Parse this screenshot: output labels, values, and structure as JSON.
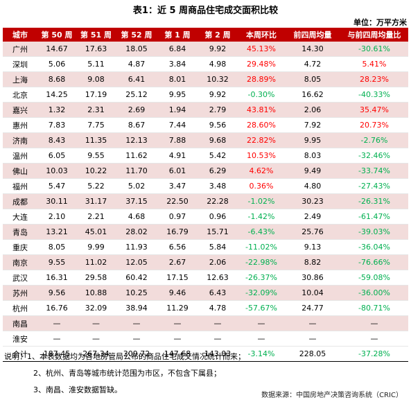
{
  "title": "表1：近 5 周商品住宅成交面积比较",
  "unit": "单位：万平方米",
  "columns": [
    "城市",
    "第 50 周",
    "第 51 周",
    "第 52 周",
    "第 1 周",
    "第 2 周",
    "本周环比",
    "前四周均量",
    "与前四周均量比"
  ],
  "rows": [
    {
      "city": "广州",
      "w50": "14.67",
      "w51": "17.63",
      "w52": "18.05",
      "w1": "6.84",
      "w2": "9.92",
      "wow": "45.13%",
      "avg4": "14.30",
      "vs4": "-30.61%"
    },
    {
      "city": "深圳",
      "w50": "5.06",
      "w51": "5.11",
      "w52": "4.87",
      "w1": "3.84",
      "w2": "4.98",
      "wow": "29.48%",
      "avg4": "4.72",
      "vs4": "5.41%"
    },
    {
      "city": "上海",
      "w50": "8.68",
      "w51": "9.08",
      "w52": "6.41",
      "w1": "8.01",
      "w2": "10.32",
      "wow": "28.89%",
      "avg4": "8.05",
      "vs4": "28.23%"
    },
    {
      "city": "北京",
      "w50": "14.25",
      "w51": "17.19",
      "w52": "25.12",
      "w1": "9.95",
      "w2": "9.92",
      "wow": "-0.30%",
      "avg4": "16.62",
      "vs4": "-40.33%"
    },
    {
      "city": "嘉兴",
      "w50": "1.32",
      "w51": "2.31",
      "w52": "2.69",
      "w1": "1.94",
      "w2": "2.79",
      "wow": "43.81%",
      "avg4": "2.06",
      "vs4": "35.47%"
    },
    {
      "city": "惠州",
      "w50": "7.83",
      "w51": "7.75",
      "w52": "8.67",
      "w1": "7.44",
      "w2": "9.56",
      "wow": "28.60%",
      "avg4": "7.92",
      "vs4": "20.73%"
    },
    {
      "city": "济南",
      "w50": "8.43",
      "w51": "11.35",
      "w52": "12.13",
      "w1": "7.88",
      "w2": "9.68",
      "wow": "22.82%",
      "avg4": "9.95",
      "vs4": "-2.76%"
    },
    {
      "city": "温州",
      "w50": "6.05",
      "w51": "9.55",
      "w52": "11.62",
      "w1": "4.91",
      "w2": "5.42",
      "wow": "10.53%",
      "avg4": "8.03",
      "vs4": "-32.46%"
    },
    {
      "city": "佛山",
      "w50": "10.03",
      "w51": "10.22",
      "w52": "11.70",
      "w1": "6.01",
      "w2": "6.29",
      "wow": "4.62%",
      "avg4": "9.49",
      "vs4": "-33.74%"
    },
    {
      "city": "福州",
      "w50": "5.47",
      "w51": "5.22",
      "w52": "5.02",
      "w1": "3.47",
      "w2": "3.48",
      "wow": "0.36%",
      "avg4": "4.80",
      "vs4": "-27.43%"
    },
    {
      "city": "成都",
      "w50": "30.11",
      "w51": "31.17",
      "w52": "37.15",
      "w1": "22.50",
      "w2": "22.28",
      "wow": "-1.02%",
      "avg4": "30.23",
      "vs4": "-26.31%"
    },
    {
      "city": "大连",
      "w50": "2.10",
      "w51": "2.21",
      "w52": "4.68",
      "w1": "0.97",
      "w2": "0.96",
      "wow": "-1.42%",
      "avg4": "2.49",
      "vs4": "-61.47%"
    },
    {
      "city": "青岛",
      "w50": "13.21",
      "w51": "45.01",
      "w52": "28.02",
      "w1": "16.79",
      "w2": "15.71",
      "wow": "-6.43%",
      "avg4": "25.76",
      "vs4": "-39.03%"
    },
    {
      "city": "重庆",
      "w50": "8.05",
      "w51": "9.99",
      "w52": "11.93",
      "w1": "6.56",
      "w2": "5.84",
      "wow": "-11.02%",
      "avg4": "9.13",
      "vs4": "-36.04%"
    },
    {
      "city": "南京",
      "w50": "9.55",
      "w51": "11.02",
      "w52": "12.05",
      "w1": "2.67",
      "w2": "2.06",
      "wow": "-22.98%",
      "avg4": "8.82",
      "vs4": "-76.66%"
    },
    {
      "city": "武汉",
      "w50": "16.31",
      "w51": "29.58",
      "w52": "60.42",
      "w1": "17.15",
      "w2": "12.63",
      "wow": "-26.37%",
      "avg4": "30.86",
      "vs4": "-59.08%"
    },
    {
      "city": "苏州",
      "w50": "9.56",
      "w51": "10.88",
      "w52": "10.25",
      "w1": "9.46",
      "w2": "6.43",
      "wow": "-32.09%",
      "avg4": "10.04",
      "vs4": "-36.00%"
    },
    {
      "city": "杭州",
      "w50": "16.76",
      "w51": "32.09",
      "w52": "38.94",
      "w1": "11.29",
      "w2": "4.78",
      "wow": "-57.67%",
      "avg4": "24.77",
      "vs4": "-80.71%"
    },
    {
      "city": "南昌",
      "w50": "—",
      "w51": "—",
      "w52": "—",
      "w1": "—",
      "w2": "—",
      "wow": "—",
      "avg4": "—",
      "vs4": "—"
    },
    {
      "city": "淮安",
      "w50": "—",
      "w51": "—",
      "w52": "—",
      "w1": "—",
      "w2": "—",
      "wow": "—",
      "avg4": "—",
      "vs4": "—"
    }
  ],
  "total": {
    "city": "合计",
    "w50": "187.45",
    "w51": "267.34",
    "w52": "309.72",
    "w1": "147.68",
    "w2": "143.03",
    "wow": "-3.14%",
    "avg4": "228.05",
    "vs4": "-37.28%"
  },
  "notes": [
    "说明：1、本表数据均为各地房管局公布的商品住宅成交情况统计而来；",
    "2、杭州、青岛等城市统计范围为市区，不包含下属县；",
    "3、南昌、淮安数据暂缺。"
  ],
  "source": "数据来源：中国房地产决策咨询系统（CRIC）",
  "colors": {
    "header_bg": "#c00000",
    "stripe": "#f2dcdb",
    "positive": "#ff0000",
    "negative": "#00b050"
  }
}
